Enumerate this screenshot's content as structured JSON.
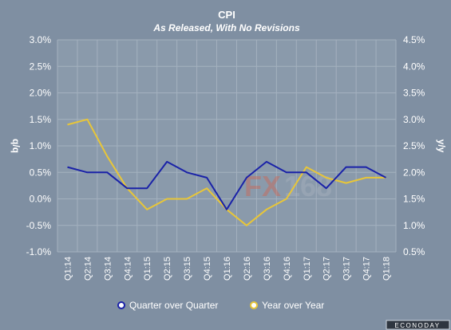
{
  "colors": {
    "background": "#7f8fa2",
    "plot_area": "#8a9aab",
    "qoq": "#1a22a8",
    "yoy": "#e8c638",
    "watermark_fx": "#e0583a",
    "watermark_168": "#b0b8c4"
  },
  "watermark": {
    "fx": "FX",
    "num": "168"
  },
  "branding": "ECONODAY",
  "chart_data": {
    "type": "line",
    "title": "CPI",
    "subtitle": "As Released, With No Revisions",
    "ylabel": "q/q",
    "y2label": "y/y",
    "categories": [
      "Q1:14",
      "Q2:14",
      "Q3:14",
      "Q4:14",
      "Q1:15",
      "Q2:15",
      "Q3:15",
      "Q4:15",
      "Q1:16",
      "Q2:16",
      "Q3:16",
      "Q4:16",
      "Q1:17",
      "Q2:17",
      "Q3:17",
      "Q4:17",
      "Q1:18"
    ],
    "ylim": [
      -1.0,
      3.0
    ],
    "y2lim": [
      0.5,
      4.5
    ],
    "yticks": [
      "3.0%",
      "2.5%",
      "2.0%",
      "1.5%",
      "1.0%",
      "0.5%",
      "0.0%",
      "-0.5%",
      "-1.0%"
    ],
    "y2ticks": [
      "4.5%",
      "4.0%",
      "3.5%",
      "3.0%",
      "2.5%",
      "2.0%",
      "1.5%",
      "1.0%",
      "0.5%"
    ],
    "grid": true,
    "legend_position": "bottom",
    "series": [
      {
        "name": "Quarter over Quarter",
        "axis": "left",
        "color": "#1a22a8",
        "values": [
          0.6,
          0.5,
          0.5,
          0.2,
          0.2,
          0.7,
          0.5,
          0.4,
          -0.2,
          0.4,
          0.7,
          0.5,
          0.5,
          0.2,
          0.6,
          0.6,
          0.4
        ]
      },
      {
        "name": "Year over Year",
        "axis": "right",
        "color": "#e8c638",
        "values": [
          2.9,
          3.0,
          2.3,
          1.7,
          1.3,
          1.5,
          1.5,
          1.7,
          1.3,
          1.0,
          1.3,
          1.5,
          2.1,
          1.9,
          1.8,
          1.9,
          1.9
        ]
      }
    ]
  }
}
